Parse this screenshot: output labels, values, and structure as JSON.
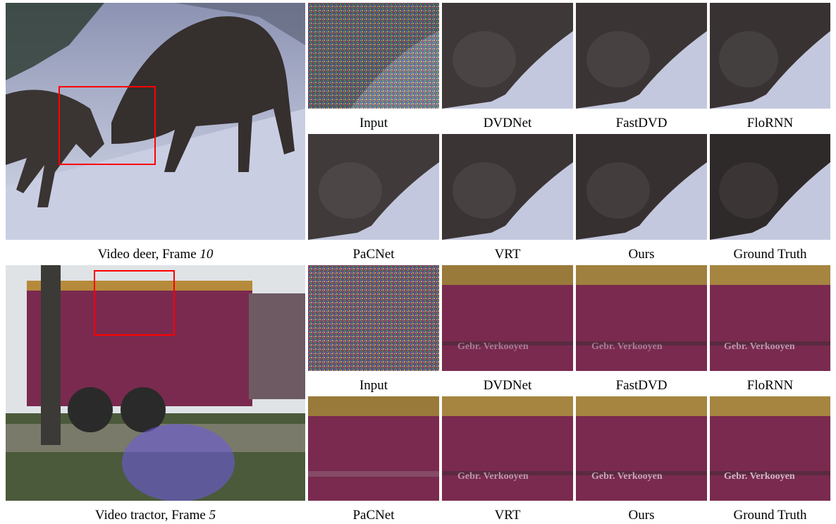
{
  "rows": [
    {
      "main_caption": {
        "prefix": "Video deer, Frame ",
        "frame": "10"
      },
      "crop_labels_top": [
        "Input",
        "DVDNet",
        "FastDVD",
        "FloRNN"
      ],
      "crop_labels_bottom": [
        "PaCNet",
        "VRT",
        "Ours",
        "Ground Truth"
      ]
    },
    {
      "main_caption": {
        "prefix": "Video tractor, Frame ",
        "frame": "5"
      },
      "crop_labels_top": [
        "Input",
        "DVDNet",
        "FastDVD",
        "FloRNN"
      ],
      "crop_labels_bottom": [
        "PaCNet",
        "VRT",
        "Ours",
        "Ground Truth"
      ],
      "overlay_text": "Gebr. Verkooyen"
    }
  ],
  "colors": {
    "roi_box": "#ff0000",
    "snow": "#b9bfd8",
    "deer": "#2e2a2a",
    "trailer": "#7a2a4f",
    "trailer_top": "#b58a3a"
  }
}
